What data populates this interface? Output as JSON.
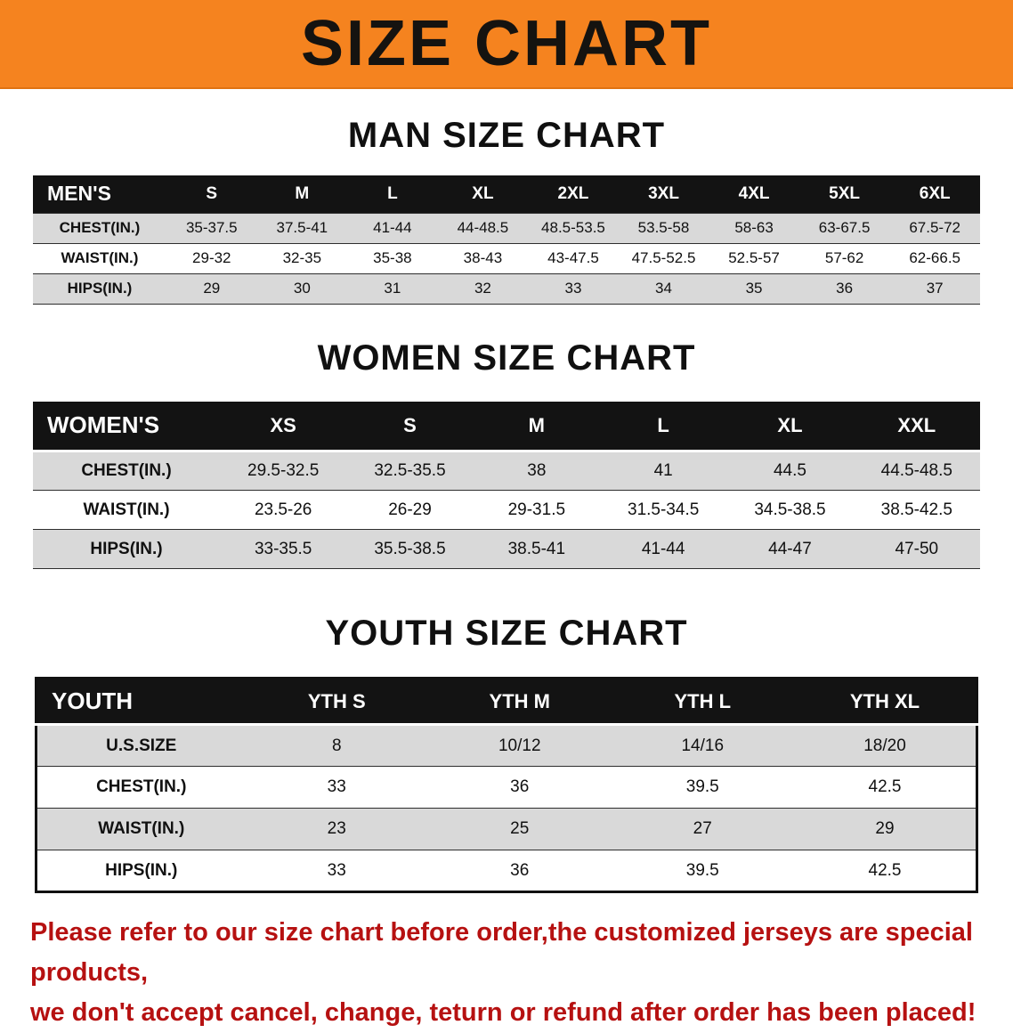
{
  "banner": {
    "title": "SIZE CHART"
  },
  "colors": {
    "banner_bg": "#f5831f",
    "table_header_bg": "#131313",
    "stripe_gray": "#d9d9d9",
    "disclaimer_red": "#b61111"
  },
  "sections": [
    {
      "heading": "MAN SIZE CHART",
      "header": [
        "MEN'S",
        "S",
        "M",
        "L",
        "XL",
        "2XL",
        "3XL",
        "4XL",
        "5XL",
        "6XL"
      ],
      "rows": [
        [
          "CHEST(IN.)",
          "35-37.5",
          "37.5-41",
          "41-44",
          "44-48.5",
          "48.5-53.5",
          "53.5-58",
          "58-63",
          "63-67.5",
          "67.5-72"
        ],
        [
          "WAIST(IN.)",
          "29-32",
          "32-35",
          "35-38",
          "38-43",
          "43-47.5",
          "47.5-52.5",
          "52.5-57",
          "57-62",
          "62-66.5"
        ],
        [
          "HIPS(IN.)",
          "29",
          "30",
          "31",
          "32",
          "33",
          "34",
          "35",
          "36",
          "37"
        ]
      ]
    },
    {
      "heading": "WOMEN SIZE CHART",
      "header": [
        "WOMEN'S",
        "XS",
        "S",
        "M",
        "L",
        "XL",
        "XXL"
      ],
      "rows": [
        [
          "CHEST(IN.)",
          "29.5-32.5",
          "32.5-35.5",
          "38",
          "41",
          "44.5",
          "44.5-48.5"
        ],
        [
          "WAIST(IN.)",
          "23.5-26",
          "26-29",
          "29-31.5",
          "31.5-34.5",
          "34.5-38.5",
          "38.5-42.5"
        ],
        [
          "HIPS(IN.)",
          "33-35.5",
          "35.5-38.5",
          "38.5-41",
          "41-44",
          "44-47",
          "47-50"
        ]
      ]
    },
    {
      "heading": "YOUTH SIZE CHART",
      "header": [
        "YOUTH",
        "YTH S",
        "YTH M",
        "YTH L",
        "YTH XL"
      ],
      "rows": [
        [
          "U.S.SIZE",
          "8",
          "10/12",
          "14/16",
          "18/20"
        ],
        [
          "CHEST(IN.)",
          "33",
          "36",
          "39.5",
          "42.5"
        ],
        [
          "WAIST(IN.)",
          "23",
          "25",
          "27",
          "29"
        ],
        [
          "HIPS(IN.)",
          "33",
          "36",
          "39.5",
          "42.5"
        ]
      ]
    }
  ],
  "footer": {
    "lines": [
      "Please refer to our size chart before order,the customized jerseys are special products,",
      "we don't accept cancel, change, teturn or refund after order has been placed!"
    ]
  }
}
